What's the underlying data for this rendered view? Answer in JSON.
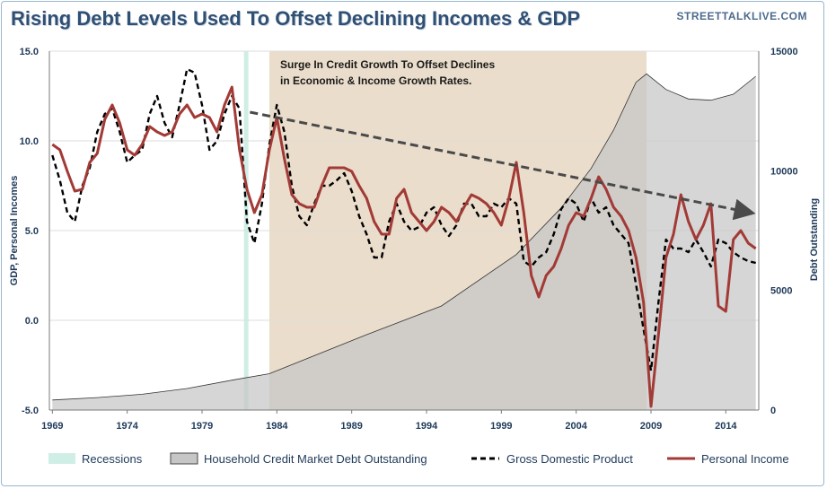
{
  "title": "Rising Debt Levels Used To Offset Declining Incomes & GDP",
  "source": "STREETTALKLIVE.COM",
  "annotation_lines": [
    "Surge In Credit Growth To Offset Declines",
    "in Economic & Income Growth Rates."
  ],
  "colors": {
    "title": "#2f4f73",
    "recession": "#cfeee6",
    "surge_band": "#e3d2ba",
    "debt_fill": "#c6c6c6",
    "debt_outline": "#333333",
    "gdp": "#000000",
    "income": "#a23a36",
    "trend_arrow": "#4a4a4a"
  },
  "chart_data": {
    "type": "line",
    "ylabel": "GDP, Personal Incomes",
    "y2label": "Debt Outstanding",
    "ylim": [
      -5,
      15
    ],
    "y2lim": [
      0,
      15000
    ],
    "xlim": [
      1968.8,
      2016.2
    ],
    "y_ticks": [
      "15.0",
      "10.0",
      "5.0",
      "0.0",
      "-5.0"
    ],
    "y2_ticks": [
      "15000",
      "10000",
      "5000",
      "0"
    ],
    "x_ticks": [
      "1969",
      "1974",
      "1979",
      "1984",
      "1989",
      "1994",
      "1999",
      "2004",
      "2009",
      "2014"
    ],
    "grid": true,
    "legend_position": "bottom",
    "legend": [
      "Recessions",
      "Household Credit Market Debt Outstanding",
      "Gross Domestic Product",
      "Personal Income"
    ],
    "shaded_periods": [
      {
        "name": "Recessions",
        "start": 1981.8,
        "end": 1982.1
      },
      {
        "name": "Surge In Credit Growth",
        "start": 1983.5,
        "end": 2008.7
      }
    ],
    "trend_arrow": {
      "x": [
        1982.2,
        2016
      ],
      "y": [
        11.6,
        6.0
      ]
    },
    "series": [
      {
        "name": "Household Credit Market Debt Outstanding",
        "axis": "right",
        "x": [
          1969,
          1972,
          1975,
          1978,
          1981,
          1983.5,
          1986,
          1990,
          1995,
          2000,
          2003,
          2005,
          2006.5,
          2008,
          2008.7,
          2010,
          2011.5,
          2013,
          2014.5,
          2016
        ],
        "values": [
          420,
          520,
          660,
          900,
          1250,
          1520,
          2150,
          3150,
          4350,
          6500,
          8450,
          10100,
          11700,
          13700,
          14050,
          13400,
          13000,
          12950,
          13200,
          13950
        ]
      },
      {
        "name": "Gross Domestic Product",
        "axis": "left",
        "x": [
          1969,
          1969.5,
          1970,
          1970.5,
          1971,
          1971.5,
          1972,
          1972.5,
          1973,
          1973.5,
          1974,
          1974.5,
          1975,
          1975.5,
          1976,
          1976.5,
          1977,
          1977.5,
          1978,
          1978.5,
          1979,
          1979.5,
          1980,
          1980.5,
          1981,
          1981.5,
          1982,
          1982.5,
          1983,
          1983.5,
          1984,
          1984.5,
          1985,
          1985.5,
          1986,
          1986.5,
          1987,
          1987.5,
          1988,
          1988.5,
          1989,
          1989.5,
          1990,
          1990.5,
          1991,
          1991.5,
          1992,
          1992.5,
          1993,
          1993.5,
          1994,
          1994.5,
          1995,
          1995.5,
          1996,
          1996.5,
          1997,
          1997.5,
          1998,
          1998.5,
          1999,
          1999.5,
          2000,
          2000.5,
          2001,
          2001.5,
          2002,
          2002.5,
          2003,
          2003.5,
          2004,
          2004.5,
          2005,
          2005.5,
          2006,
          2006.5,
          2007,
          2007.5,
          2008,
          2008.5,
          2009,
          2009.5,
          2010,
          2010.5,
          2011,
          2011.5,
          2012,
          2012.5,
          2013,
          2013.5,
          2014,
          2014.5,
          2015,
          2015.5,
          2016
        ],
        "values": [
          9.2,
          7.8,
          6.0,
          5.5,
          7.5,
          8.5,
          10.5,
          11.5,
          11.8,
          10.5,
          8.8,
          9.2,
          9.5,
          11.5,
          12.5,
          11.0,
          10.2,
          12.0,
          14.0,
          13.8,
          12.0,
          9.5,
          10.0,
          11.5,
          12.5,
          11.8,
          5.5,
          4.3,
          6.5,
          9.8,
          12.0,
          10.5,
          7.5,
          5.8,
          5.3,
          6.5,
          7.5,
          7.5,
          7.8,
          8.2,
          7.2,
          5.8,
          4.8,
          3.5,
          3.5,
          5.5,
          6.5,
          5.5,
          5.0,
          5.2,
          6.0,
          6.3,
          5.3,
          4.7,
          5.3,
          6.5,
          6.5,
          5.8,
          5.8,
          6.5,
          6.3,
          6.8,
          6.5,
          3.3,
          3.0,
          3.5,
          3.8,
          4.8,
          6.2,
          6.8,
          6.5,
          5.5,
          6.8,
          6.0,
          6.3,
          5.3,
          4.8,
          4.3,
          2.0,
          -0.5,
          -2.8,
          1.0,
          4.5,
          4.0,
          4.0,
          3.8,
          4.5,
          3.8,
          3.0,
          4.5,
          4.3,
          3.8,
          3.5,
          3.3,
          3.2
        ]
      },
      {
        "name": "Personal Income",
        "axis": "left",
        "x": [
          1969,
          1969.5,
          1970,
          1970.5,
          1971,
          1971.5,
          1972,
          1972.5,
          1973,
          1973.5,
          1974,
          1974.5,
          1975,
          1975.5,
          1976,
          1976.5,
          1977,
          1977.5,
          1978,
          1978.5,
          1979,
          1979.5,
          1980,
          1980.5,
          1981,
          1981.5,
          1982,
          1982.5,
          1983,
          1983.5,
          1984,
          1984.5,
          1985,
          1985.5,
          1986,
          1986.5,
          1987,
          1987.5,
          1988,
          1988.5,
          1989,
          1989.5,
          1990,
          1990.5,
          1991,
          1991.5,
          1992,
          1992.5,
          1993,
          1993.5,
          1994,
          1994.5,
          1995,
          1995.5,
          1996,
          1996.5,
          1997,
          1997.5,
          1998,
          1998.5,
          1999,
          1999.5,
          2000,
          2000.5,
          2001,
          2001.5,
          2002,
          2002.5,
          2003,
          2003.5,
          2004,
          2004.5,
          2005,
          2005.5,
          2006,
          2006.5,
          2007,
          2007.5,
          2008,
          2008.5,
          2009,
          2009.5,
          2010,
          2010.5,
          2011,
          2011.5,
          2012,
          2012.5,
          2013,
          2013.5,
          2014,
          2014.5,
          2015,
          2015.5,
          2016
        ],
        "values": [
          9.8,
          9.5,
          8.3,
          7.2,
          7.3,
          8.8,
          9.3,
          11.2,
          12.0,
          11.0,
          9.5,
          9.2,
          9.8,
          10.8,
          10.5,
          10.3,
          10.5,
          11.5,
          12.0,
          11.3,
          11.5,
          11.3,
          10.5,
          12.0,
          13.0,
          9.5,
          7.3,
          6.0,
          7.0,
          9.5,
          11.3,
          9.0,
          7.0,
          6.5,
          6.3,
          6.3,
          7.5,
          8.5,
          8.5,
          8.5,
          8.3,
          7.5,
          6.8,
          5.5,
          4.8,
          4.8,
          6.8,
          7.3,
          6.0,
          5.5,
          5.0,
          5.5,
          6.3,
          6.0,
          5.5,
          6.3,
          7.0,
          6.8,
          6.5,
          6.0,
          5.3,
          6.8,
          8.8,
          6.0,
          2.5,
          1.3,
          2.5,
          3.0,
          4.0,
          5.3,
          6.0,
          5.8,
          6.8,
          8.0,
          7.3,
          6.3,
          5.8,
          5.0,
          3.5,
          1.0,
          -4.8,
          -0.8,
          3.5,
          4.8,
          7.0,
          5.5,
          4.5,
          5.3,
          6.5,
          0.8,
          0.5,
          4.5,
          5.0,
          4.3,
          4.0
        ]
      }
    ]
  }
}
